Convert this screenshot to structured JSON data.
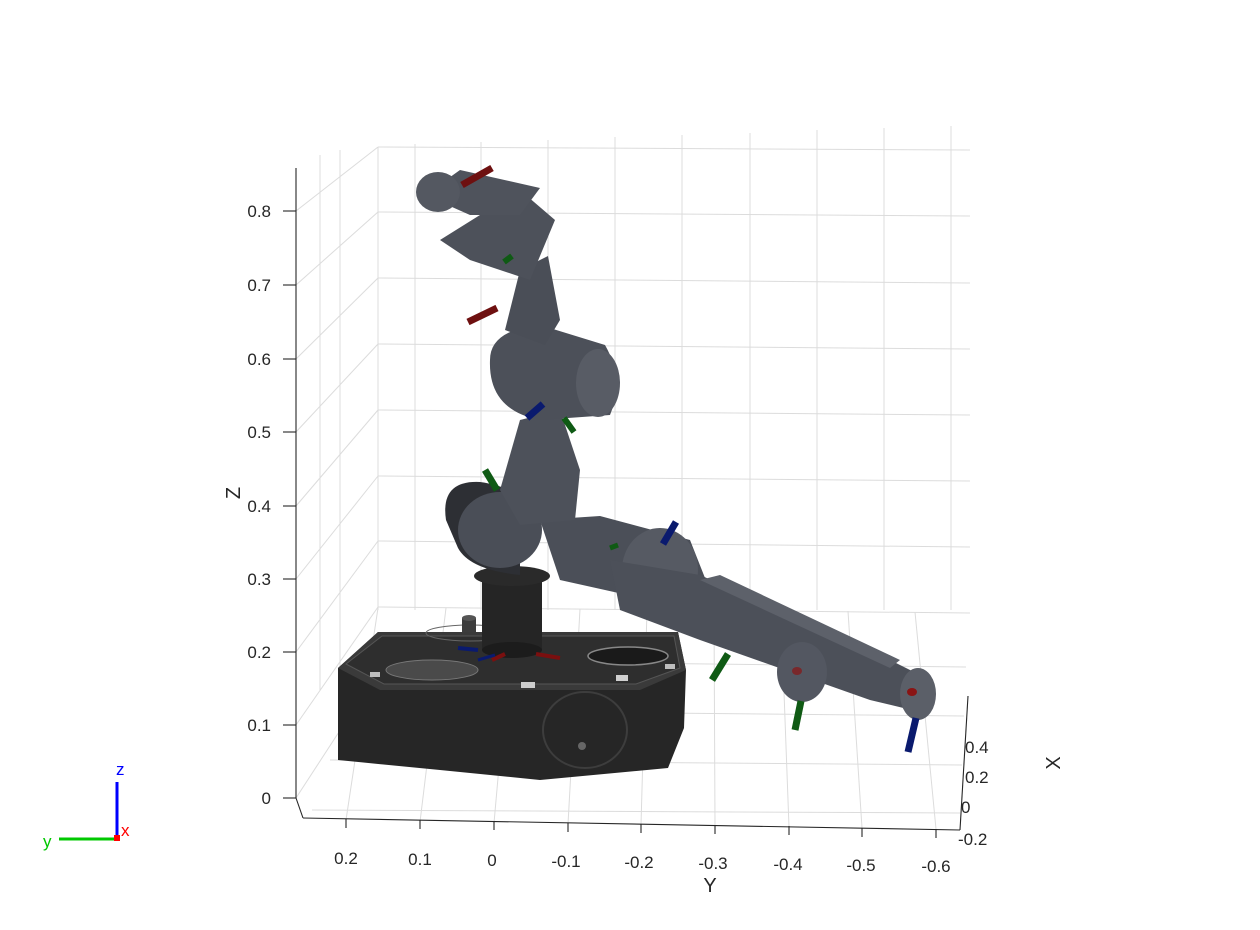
{
  "axes": {
    "xlabel": "X",
    "ylabel": "Y",
    "zlabel": "Z",
    "z_ticks": [
      "0",
      "0.1",
      "0.2",
      "0.3",
      "0.4",
      "0.5",
      "0.6",
      "0.7",
      "0.8"
    ],
    "y_ticks": [
      "0.2",
      "0.1",
      "0",
      "-0.1",
      "-0.2",
      "-0.3",
      "-0.4",
      "-0.5",
      "-0.6"
    ],
    "x_ticks": [
      "0.4",
      "0.2",
      "0",
      "-0.2"
    ],
    "grid": true
  },
  "orientation_triad": {
    "z_label": "z",
    "y_label": "y",
    "x_label": "x",
    "z_color": "#0000ff",
    "y_color": "#00c800",
    "x_color": "#ff0000"
  },
  "colors": {
    "link": "#4a4e57",
    "link_dark": "#3a3d45",
    "base": "#2a2a2a",
    "frame_x": "#7a0f0f",
    "frame_y": "#0f5a14",
    "frame_z": "#0a1a6e"
  }
}
